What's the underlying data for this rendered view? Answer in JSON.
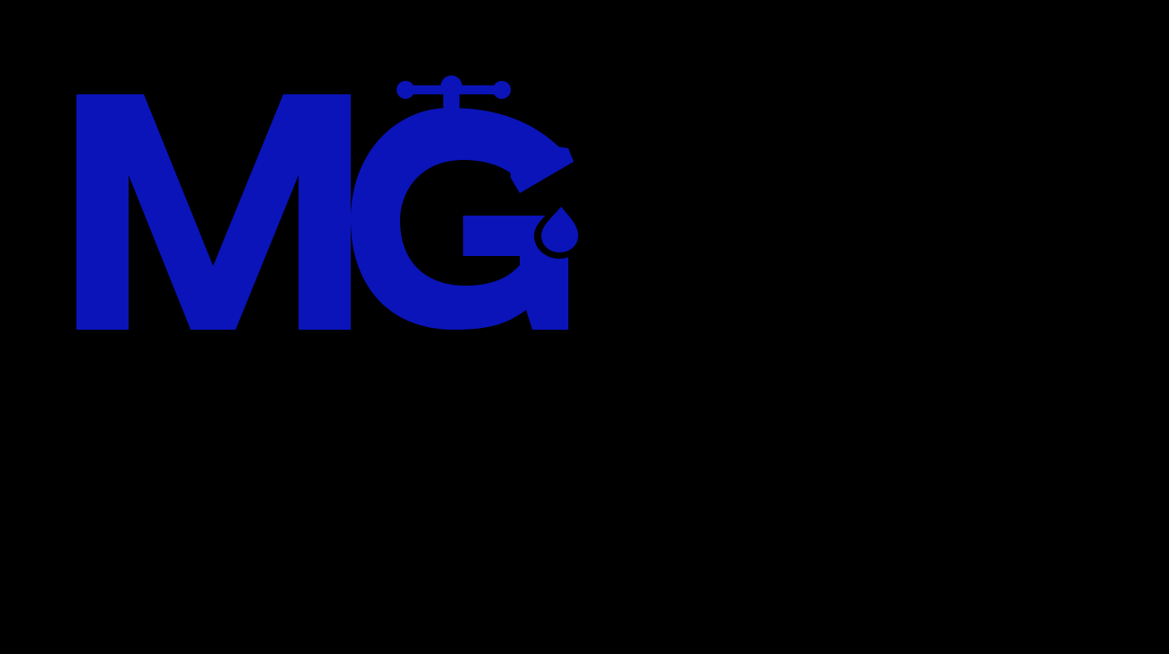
{
  "logo": {
    "lettering": "MG",
    "icon": "water-faucet-drop-icon",
    "colors": {
      "background": "#000000",
      "brand_blue": "#0a14b8",
      "cutout": "#000000"
    }
  }
}
